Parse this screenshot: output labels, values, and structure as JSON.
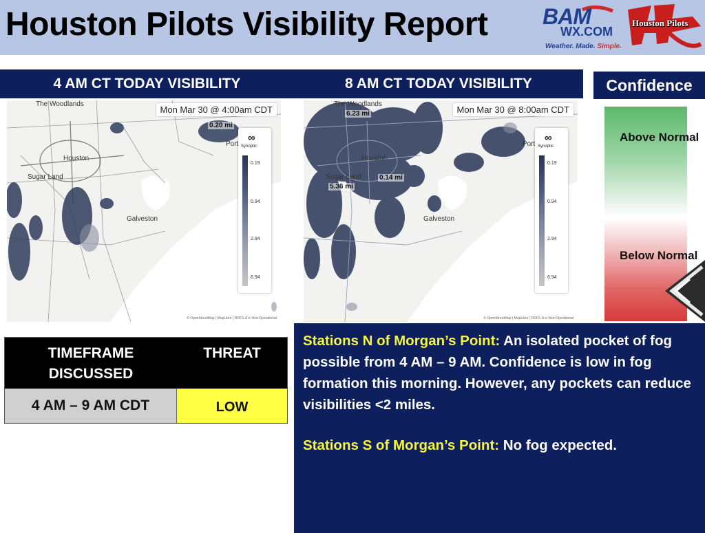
{
  "header": {
    "title": "Houston Pilots Visibility Report",
    "bam_logo": {
      "word": "BAM",
      "domain": "WX.COM",
      "tagline_blue": "Weather. Made. ",
      "tagline_red": "Simple."
    },
    "pilots_logo": {
      "text": "Houston Pilots"
    }
  },
  "maps": [
    {
      "banner": "4 AM CT TODAY VISIBILITY",
      "timestamp": "Mon Mar 30 @ 4:00am CDT",
      "places": {
        "woodlands": "The Woodlands",
        "houston": "Houston",
        "sugar_land": "Sugar Land",
        "galveston": "Galveston",
        "port_arthur": "Port Ar"
      },
      "readings": {
        "top": "0.20 mi"
      },
      "legend": {
        "icon": "∞",
        "brand": "Synoptic",
        "ticks": [
          "0.19",
          "0.94",
          "2.94",
          "6.94"
        ]
      },
      "attribution": "© OpenStreetMap | MapLibre | RRFS-A is Non-Operational"
    },
    {
      "banner": "8 AM CT TODAY VISIBILITY",
      "timestamp": "Mon Mar 30 @ 8:00am CDT",
      "places": {
        "woodlands": "The Woodlands",
        "houston": "Houston",
        "sugar_land": "Sugar Land",
        "galveston": "Galveston",
        "port_arthur": "Port Ar"
      },
      "readings": {
        "woodlands": "6.23 mi",
        "houston": "0.14 mi",
        "sugar_land": "5.36 mi"
      },
      "legend": {
        "icon": "∞",
        "brand": "Synoptic",
        "ticks": [
          "0.19",
          "0.94",
          "2.94",
          "6.94"
        ]
      },
      "attribution": "© OpenStreetMap | MapLibre | RRFS-A is Non-Operational"
    }
  ],
  "confidence": {
    "title": "Confidence",
    "above": "Above Normal",
    "below": "Below Normal",
    "level": "below-normal"
  },
  "threat_table": {
    "headers": {
      "timeframe": "TIMEFRAME DISCUSSED",
      "threat": "THREAT"
    },
    "rows": [
      {
        "timeframe": "4 AM – 9 AM CDT",
        "threat": "LOW"
      }
    ],
    "threat_color": "#ffff44"
  },
  "discussion": {
    "north": {
      "label": "Stations N of Morgan’s Point:",
      "text": " An isolated pocket of fog possible from 4 AM – 9 AM. Confidence is low in fog formation this morning. However, any pockets can reduce visibilities <2 miles."
    },
    "south": {
      "label": "Stations S of Morgan’s Point:",
      "text": " No fog expected."
    }
  },
  "colors": {
    "navy": "#0d1f5c",
    "header_bg": "#b8c6e6",
    "highlight": "#f5f542",
    "threat_low": "#ffff44"
  }
}
